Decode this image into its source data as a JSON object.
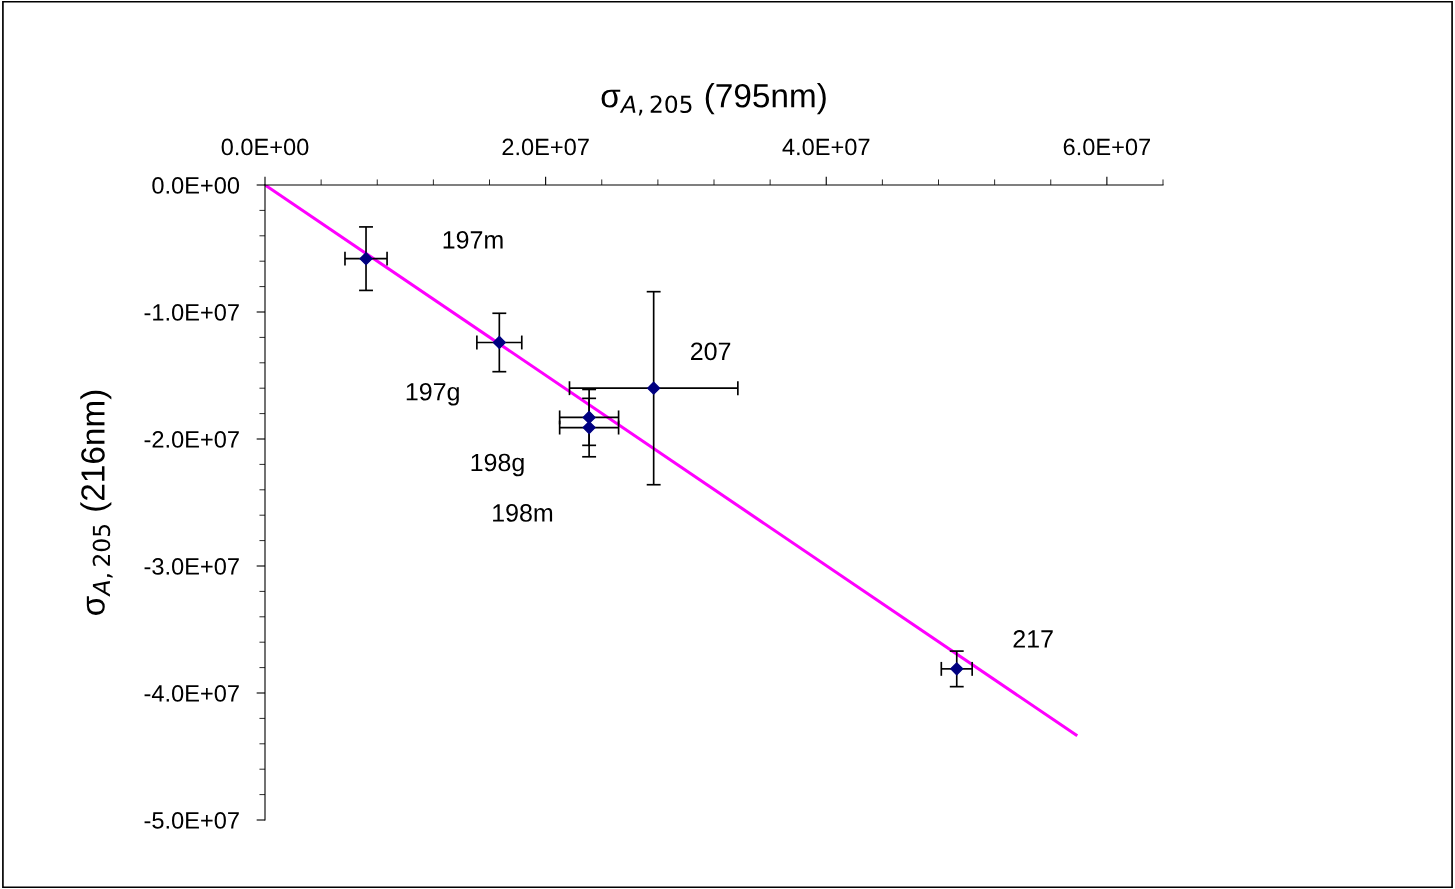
{
  "chart_data": {
    "type": "scatter",
    "xlabel": "σ$_{A,205}$ (795nm)",
    "ylabel": "σ$_{A,205}$ (216nm)",
    "xlim": [
      0,
      64000000
    ],
    "ylim": [
      -50000000,
      0
    ],
    "xticks": [
      {
        "value": 0,
        "label": "0.0E+00"
      },
      {
        "value": 20000000,
        "label": "2.0E+07"
      },
      {
        "value": 40000000,
        "label": "4.0E+07"
      },
      {
        "value": 60000000,
        "label": "6.0E+07"
      }
    ],
    "yticks": [
      {
        "value": 0,
        "label": "0.0E+00"
      },
      {
        "value": -10000000,
        "label": "-1.0E+07"
      },
      {
        "value": -20000000,
        "label": "-2.0E+07"
      },
      {
        "value": -30000000,
        "label": "-3.0E+07"
      },
      {
        "value": -40000000,
        "label": "-4.0E+07"
      },
      {
        "value": -50000000,
        "label": "-5.0E+07"
      }
    ],
    "grid": false,
    "legend": false,
    "series": [
      {
        "type": "scatter",
        "color": "#000080",
        "marker": "diamond",
        "x": [
          7200000,
          16700000,
          27700000,
          23100000,
          23100000,
          49300000
        ],
        "values": [
          -5800000,
          -12400000,
          -16000000,
          -18300000,
          -19100000,
          -38100000
        ],
        "errors": [
          2500000,
          2300000,
          7600000,
          2200000,
          2300000,
          1400000
        ],
        "xerrors": [
          1500000,
          1600000,
          6000000,
          2100000,
          2100000,
          1100000
        ]
      },
      {
        "type": "line",
        "color": "#ff00ff",
        "marker": "none",
        "line_style": "solid",
        "x": [
          0,
          57800000
        ],
        "values": [
          0,
          -43300000
        ]
      }
    ],
    "annotations": [
      "197m",
      "197g",
      "207",
      "198g",
      "198m",
      "217"
    ]
  }
}
